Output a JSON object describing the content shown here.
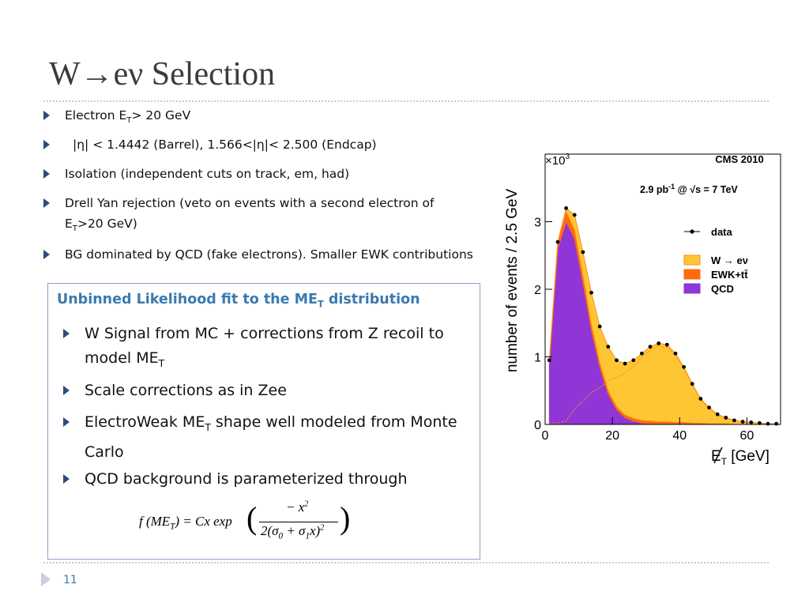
{
  "slide": {
    "title": "W→eν Selection",
    "bullets": [
      [
        "Electron E",
        "T",
        "> 20 GeV"
      ],
      [
        "|η| < 1.4442 (Barrel), 1.566<|η|< 2.500 (Endcap)"
      ],
      [
        "Isolation  (independent cuts  on  track, em, had)"
      ],
      [
        "Drell Yan rejection (veto on events with a second electron of E",
        "T",
        ">20 GeV)"
      ],
      [
        "BG dominated by QCD (fake electrons). Smaller EWK contributions"
      ]
    ],
    "box": {
      "heading": [
        "Unbinned Likelihood fit to the ME",
        "T",
        " distribution"
      ],
      "items": [
        [
          "W Signal  from MC + corrections from Z recoil to model ME",
          "T",
          ""
        ],
        [
          "Scale corrections as in Zee"
        ],
        [
          "ElectroWeak ME",
          "T",
          " shape well modeled from Monte Carlo"
        ],
        [
          "QCD background is parameterized through"
        ]
      ],
      "formula": {
        "left": [
          "f (ME",
          "T",
          ") = Cx exp"
        ],
        "numerator": [
          "− x",
          "2"
        ],
        "denominator": [
          "2(σ",
          "0",
          " + σ",
          "1",
          "x)",
          "2"
        ]
      }
    },
    "page_number": "11"
  },
  "chart": {
    "type": "area",
    "title": "CMS 2010",
    "annotation": [
      "2.9 pb",
      "-1",
      " @ √s = 7 TeV"
    ],
    "multiplier": [
      "×10",
      "3"
    ],
    "ylabel": "number of events / 2.5 GeV",
    "xlabel": [
      "E",
      "T",
      " [GeV]"
    ],
    "xlim": [
      0,
      70
    ],
    "ylim": [
      0,
      4
    ],
    "xticks": [
      0,
      20,
      40,
      60
    ],
    "yticks": [
      0,
      1,
      2,
      3
    ],
    "x": [
      1.25,
      3.75,
      6.25,
      8.75,
      11.25,
      13.75,
      16.25,
      18.75,
      21.25,
      23.75,
      26.25,
      28.75,
      31.25,
      33.75,
      36.25,
      38.75,
      41.25,
      43.75,
      46.25,
      48.75,
      51.25,
      53.75,
      56.25,
      58.75,
      61.25,
      63.75,
      66.25,
      68.75
    ],
    "data": {
      "name": "data",
      "color": "#000000",
      "values": [
        0.95,
        2.7,
        3.2,
        3.1,
        2.55,
        1.95,
        1.45,
        1.15,
        0.95,
        0.9,
        0.95,
        1.05,
        1.15,
        1.2,
        1.18,
        1.05,
        0.85,
        0.6,
        0.38,
        0.25,
        0.15,
        0.1,
        0.06,
        0.04,
        0.03,
        0.02,
        0.01,
        0.01
      ]
    },
    "series": [
      {
        "name": "W → eν",
        "color": "#ffc633",
        "values": [
          0.02,
          0.02,
          0.05,
          0.23,
          0.35,
          0.47,
          0.54,
          0.65,
          0.69,
          0.76,
          0.86,
          0.99,
          1.1,
          1.16,
          1.14,
          1.02,
          0.82,
          0.58,
          0.36,
          0.24,
          0.14,
          0.09,
          0.06,
          0.04,
          0.03,
          0.02,
          0.01,
          0.01
        ]
      },
      {
        "name": "EWK+tt̄",
        "color": "#ff6a0d",
        "values": [
          0.03,
          0.08,
          0.15,
          0.12,
          0.1,
          0.08,
          0.06,
          0.05,
          0.04,
          0.04,
          0.04,
          0.04,
          0.04,
          0.04,
          0.04,
          0.03,
          0.03,
          0.02,
          0.02,
          0.01,
          0.01,
          0.01,
          0,
          0,
          0,
          0,
          0,
          0
        ]
      },
      {
        "name": "QCD",
        "color": "#9035d6",
        "values": [
          0.9,
          2.6,
          3.0,
          2.75,
          2.1,
          1.4,
          0.85,
          0.45,
          0.22,
          0.1,
          0.05,
          0.02,
          0.01,
          0,
          0,
          0,
          0,
          0,
          0,
          0,
          0,
          0,
          0,
          0,
          0,
          0,
          0,
          0
        ]
      }
    ]
  }
}
